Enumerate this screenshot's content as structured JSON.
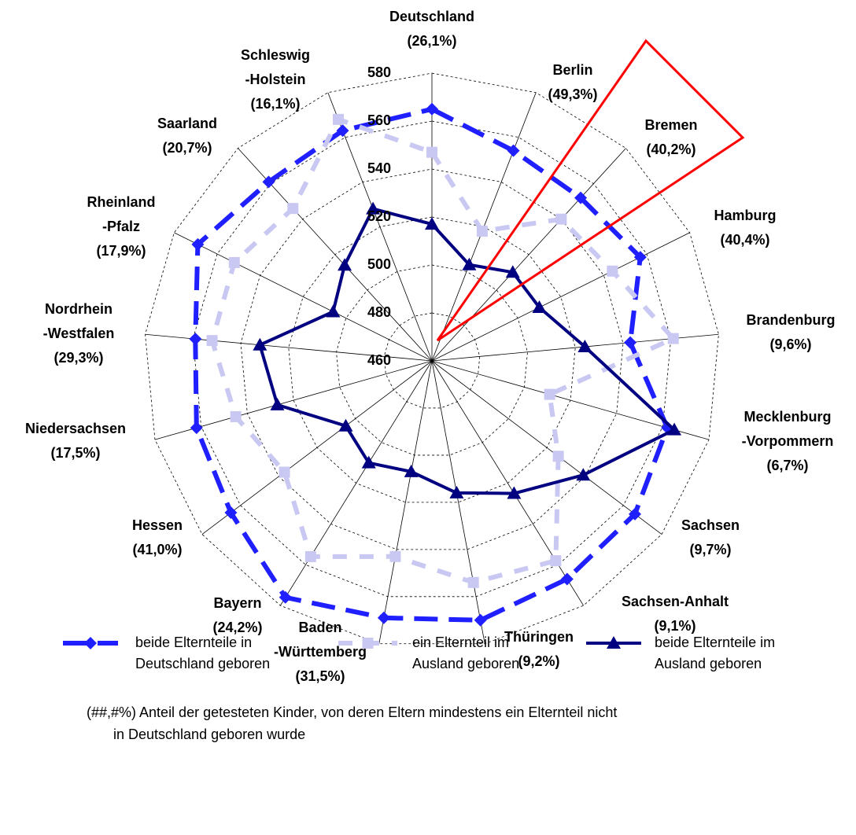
{
  "chart_data": {
    "type": "radar",
    "categories": [
      [
        "Deutschland",
        "(26,1%)"
      ],
      [
        "Berlin",
        "(49,3%)"
      ],
      [
        "Bremen",
        "(40,2%)"
      ],
      [
        "Hamburg",
        "(40,4%)"
      ],
      [
        "Brandenburg",
        "(9,6%)"
      ],
      [
        "Mecklenburg",
        "-Vorpommern",
        "(6,7%)"
      ],
      [
        "Sachsen",
        "(9,7%)"
      ],
      [
        "Sachsen-Anhalt",
        "(9,1%)"
      ],
      [
        "Thüringen",
        "(9,2%)"
      ],
      [
        "Baden",
        "-Württemberg",
        "(31,5%)"
      ],
      [
        "Bayern",
        "(24,2%)"
      ],
      [
        "Hessen",
        "(41,0%)"
      ],
      [
        "Niedersachsen",
        "(17,5%)"
      ],
      [
        "Nordrhein",
        "-Westfalen",
        "(29,3%)"
      ],
      [
        "Rheinland",
        "-Pfalz",
        "(17,9%)"
      ],
      [
        "Saarland",
        "(20,7%)"
      ],
      [
        "Schleswig",
        "-Holstein",
        "(16,1%)"
      ]
    ],
    "series": [
      {
        "name": [
          "beide Elternteile in",
          "Deutschland geboren"
        ],
        "color": "#1f1fff",
        "marker": "diamond",
        "values": [
          565,
          554,
          552,
          557,
          543,
          562,
          566,
          567,
          570,
          569,
          576,
          565,
          562,
          559,
          569,
          561,
          563
        ]
      },
      {
        "name": [
          "ein Elternteil im",
          "Ausland geboren"
        ],
        "color": "#c8c8f2",
        "marker": "square",
        "values": [
          547,
          518,
          540,
          544,
          561,
          511,
          526,
          558,
          554,
          543,
          556,
          537,
          545,
          552,
          552,
          546,
          568
        ]
      },
      {
        "name": [
          "beide Elternteile im",
          "Ausland geboren"
        ],
        "color": "#000080",
        "marker": "triangle",
        "values": [
          517,
          503,
          510,
          510,
          524,
          565,
          539,
          525,
          516,
          507,
          510,
          505,
          527,
          532,
          506,
          514,
          528
        ]
      }
    ],
    "rlim": [
      460,
      580
    ],
    "rticks": [
      460,
      480,
      500,
      520,
      540,
      560,
      580
    ],
    "footnote": [
      "(##,#%)  Anteil der getesteten Kinder,  von deren Eltern mindestens ein Elternteil nicht",
      "in Deutschland geboren wurde"
    ]
  }
}
